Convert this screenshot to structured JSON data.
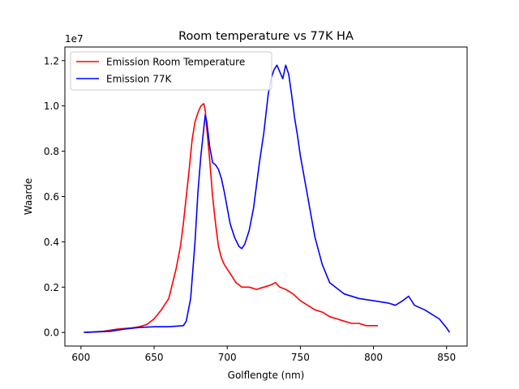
{
  "chart_data": {
    "type": "line",
    "title": "Room temperature vs 77K HA",
    "xlabel": "Golflengte (nm)",
    "ylabel": "Waarde",
    "y_multiplier_label": "1e7",
    "xlim": [
      589,
      864
    ],
    "ylim": [
      -0.06,
      1.26
    ],
    "xticks": [
      600,
      650,
      700,
      750,
      800,
      850
    ],
    "yticks": [
      0.0,
      0.2,
      0.4,
      0.6,
      0.8,
      1.0,
      1.2
    ],
    "ytick_labels": [
      "0.0",
      "0.2",
      "0.4",
      "0.6",
      "0.8",
      "1.0",
      "1.2"
    ],
    "y_unit": "1e7",
    "grid": false,
    "legend_position": "upper left",
    "series": [
      {
        "name": "Emission Room Temperature",
        "color": "#ff0000",
        "x": [
          602,
          615,
          625,
          635,
          640,
          645,
          650,
          655,
          660,
          665,
          668,
          670,
          672,
          674,
          676,
          678,
          680,
          682,
          684,
          685,
          686,
          687,
          688,
          690,
          692,
          694,
          696,
          698,
          700,
          702,
          704,
          706,
          708,
          710,
          715,
          720,
          725,
          730,
          733,
          736,
          740,
          745,
          750,
          755,
          760,
          765,
          770,
          775,
          780,
          785,
          790,
          795,
          800,
          803
        ],
        "values": [
          0.0,
          0.005,
          0.015,
          0.02,
          0.025,
          0.035,
          0.06,
          0.1,
          0.15,
          0.28,
          0.38,
          0.48,
          0.6,
          0.72,
          0.85,
          0.93,
          0.97,
          1.0,
          1.01,
          0.98,
          0.9,
          0.83,
          0.76,
          0.6,
          0.48,
          0.38,
          0.33,
          0.3,
          0.28,
          0.26,
          0.24,
          0.22,
          0.21,
          0.2,
          0.2,
          0.19,
          0.2,
          0.21,
          0.22,
          0.2,
          0.19,
          0.17,
          0.14,
          0.12,
          0.1,
          0.09,
          0.07,
          0.06,
          0.05,
          0.04,
          0.04,
          0.03,
          0.03,
          0.03
        ]
      },
      {
        "name": "Emission 77K",
        "color": "#0000ff",
        "x": [
          602,
          620,
          630,
          640,
          650,
          660,
          670,
          672,
          675,
          678,
          680,
          682,
          684,
          685,
          686,
          688,
          690,
          692,
          694,
          696,
          698,
          700,
          702,
          705,
          708,
          710,
          712,
          715,
          718,
          720,
          722,
          725,
          728,
          730,
          732,
          734,
          736,
          738,
          740,
          742,
          744,
          746,
          748,
          750,
          755,
          760,
          765,
          770,
          780,
          790,
          800,
          810,
          815,
          820,
          824,
          828,
          835,
          840,
          845,
          850,
          852
        ],
        "values": [
          0.0,
          0.005,
          0.015,
          0.022,
          0.025,
          0.025,
          0.03,
          0.05,
          0.15,
          0.4,
          0.62,
          0.78,
          0.9,
          0.96,
          0.93,
          0.82,
          0.75,
          0.74,
          0.72,
          0.68,
          0.62,
          0.55,
          0.48,
          0.42,
          0.38,
          0.37,
          0.39,
          0.45,
          0.55,
          0.65,
          0.75,
          0.88,
          1.05,
          1.12,
          1.16,
          1.18,
          1.15,
          1.12,
          1.18,
          1.14,
          1.05,
          0.95,
          0.87,
          0.78,
          0.6,
          0.42,
          0.3,
          0.22,
          0.17,
          0.15,
          0.14,
          0.13,
          0.12,
          0.14,
          0.16,
          0.12,
          0.1,
          0.08,
          0.06,
          0.02,
          0.0
        ]
      }
    ]
  }
}
